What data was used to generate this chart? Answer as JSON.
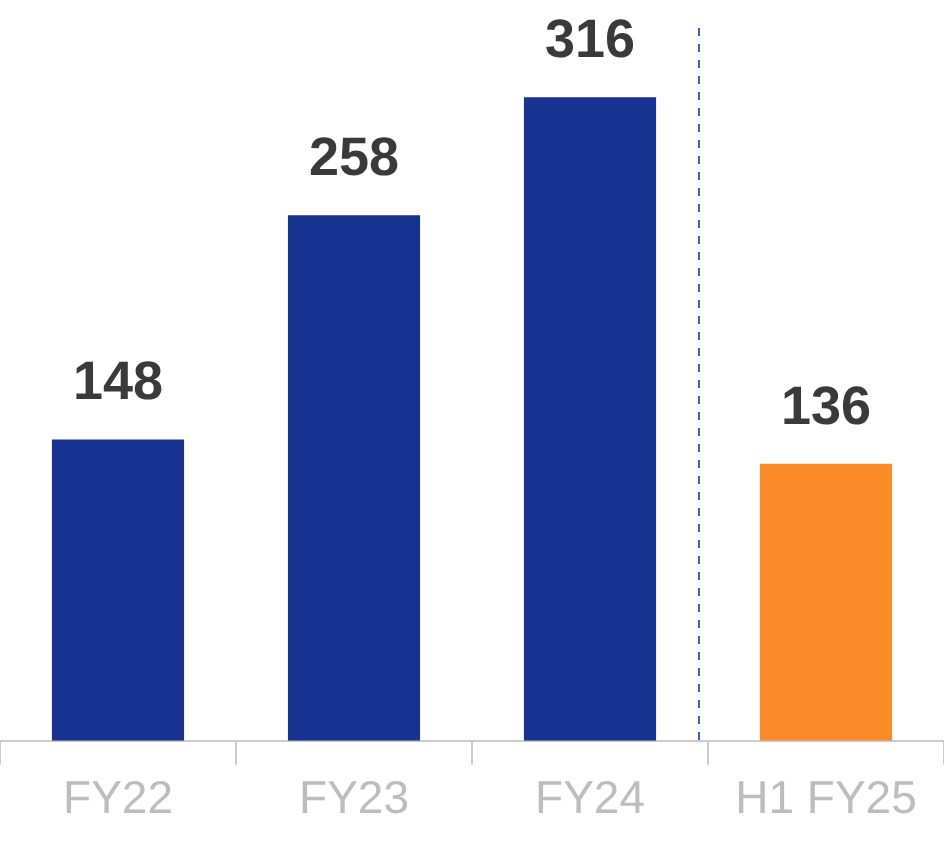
{
  "chart_data": {
    "type": "bar",
    "categories": [
      "FY22",
      "FY23",
      "FY24",
      "H1 FY25"
    ],
    "values": [
      148,
      258,
      316,
      136
    ],
    "colors": [
      "#17338f",
      "#17338f",
      "#17338f",
      "#fa8c2a"
    ],
    "ref_lines": [
      {
        "axis": "x",
        "value": "H1 FY25",
        "color": "#3a5fc8",
        "line_style": "dashed"
      }
    ],
    "data_labels": true,
    "grid": false,
    "legend": false
  }
}
